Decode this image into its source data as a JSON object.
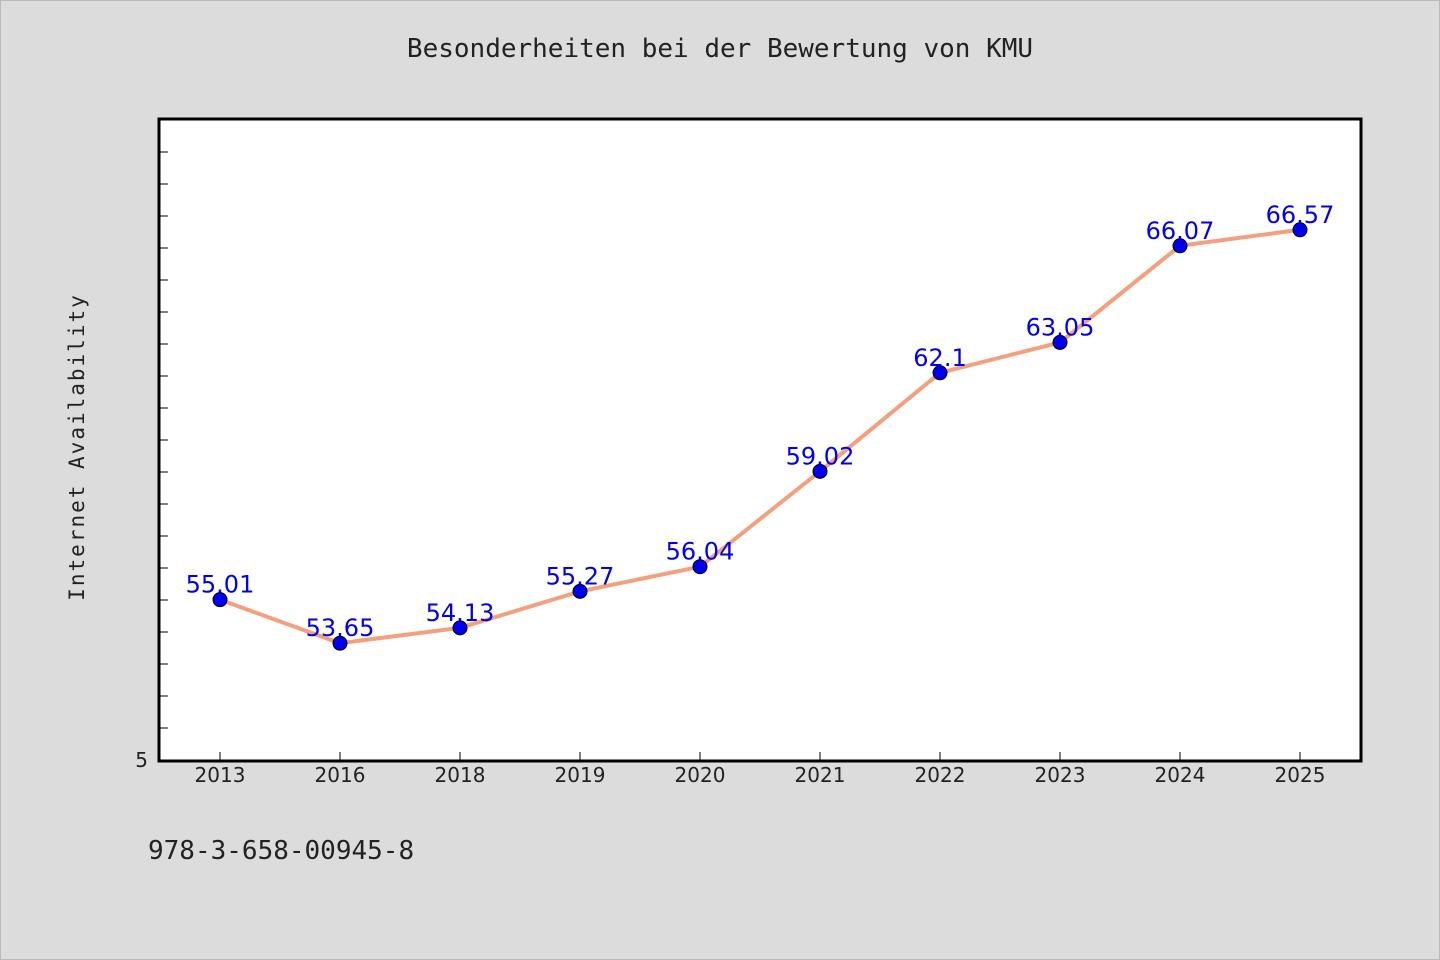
{
  "chart_data": {
    "type": "line",
    "title": "Besonderheiten bei der Bewertung von KMU",
    "xlabel": "",
    "ylabel": "Internet Availability",
    "categories": [
      "2013",
      "2016",
      "2018",
      "2019",
      "2020",
      "2021",
      "2022",
      "2023",
      "2024",
      "2025"
    ],
    "series": [
      {
        "values": [
          55.01,
          53.65,
          54.13,
          55.27,
          56.04,
          59.02,
          62.1,
          63.05,
          66.07,
          66.57
        ],
        "labels": [
          "55.01",
          "53.65",
          "54.13",
          "55.27",
          "56.04",
          "59.02",
          "62.1",
          "63.05",
          "66.07",
          "66.57"
        ],
        "line_color": "#f4a07e",
        "marker_color": "#0000ee"
      }
    ],
    "y_tick_labels": [
      "5"
    ],
    "ylim": [
      50,
      70
    ],
    "grid": false,
    "legend": "none"
  },
  "footer": {
    "id_text": "978-3-658-00945-8"
  },
  "colors": {
    "background": "#dcdcdc",
    "plot_background": "#ffffff",
    "axis": "#000000",
    "label_color": "#0000ee"
  }
}
